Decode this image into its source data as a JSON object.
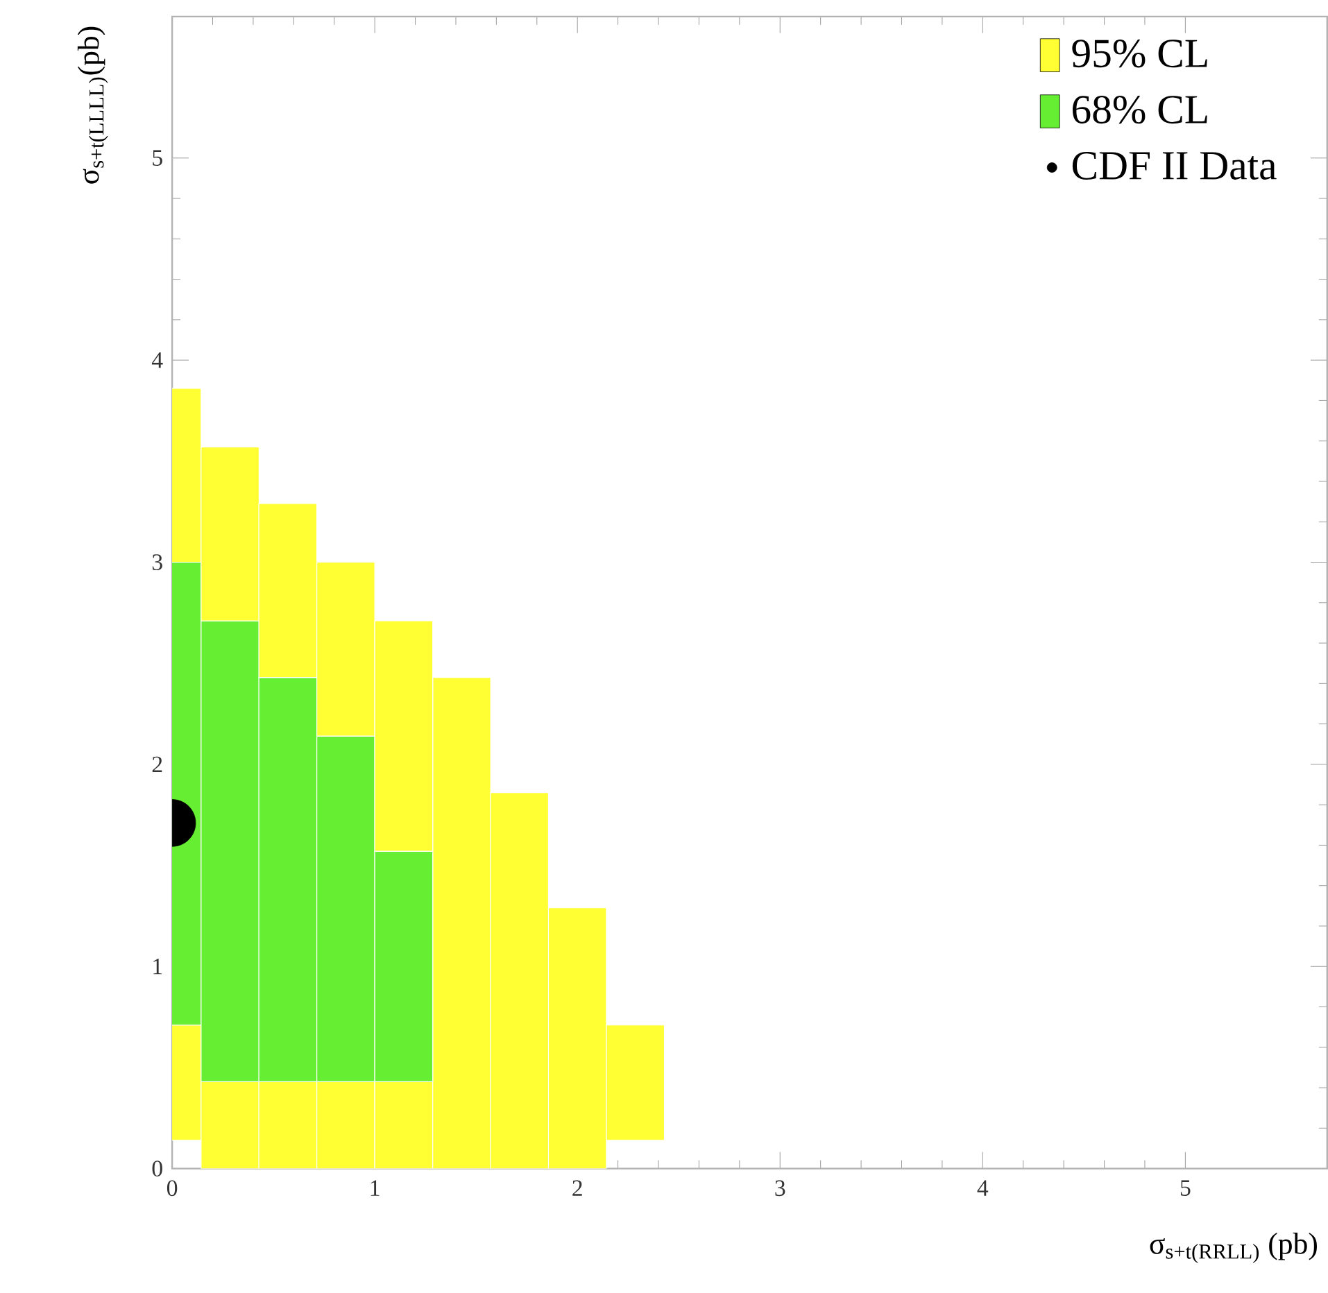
{
  "chart_data": {
    "type": "bar",
    "stacked": true,
    "xlabel": "σ$_{s+t(RRLL)}$ (pb)",
    "ylabel": "σ$_{s+t(LLLL)}$(pb)",
    "x": [
      0,
      0.286,
      0.571,
      0.857,
      1.143,
      1.429,
      1.714,
      2.0,
      2.286
    ],
    "series": [
      {
        "name": "95% CL",
        "color": "#ffff33",
        "base": [
          0.14,
          0,
          0,
          0,
          0,
          0,
          0,
          0,
          0.14
        ],
        "values": [
          0.57,
          0.43,
          0.43,
          0.43,
          0.43,
          2.43,
          1.86,
          1.29,
          0.57
        ]
      },
      {
        "name": "68% CL",
        "color": "#66ee33",
        "values": [
          2.29,
          2.28,
          2.0,
          1.71,
          1.14,
          null,
          null,
          null,
          null
        ]
      },
      {
        "color": "#ffff33",
        "values": [
          0.86,
          0.86,
          0.86,
          0.86,
          1.14,
          null,
          null,
          null,
          null
        ]
      },
      {
        "name": "CDF II Data",
        "type": "scatter",
        "color": "#000000",
        "x": [
          0
        ],
        "values": [
          1.71
        ]
      }
    ],
    "xlim": [
      0,
      5.7
    ],
    "ylim": [
      0,
      5.7
    ],
    "xticks": [
      0,
      1,
      2,
      3,
      4,
      5
    ],
    "yticks": [
      0,
      1,
      2,
      3,
      4,
      5
    ],
    "grid": false,
    "legend": "top right"
  }
}
